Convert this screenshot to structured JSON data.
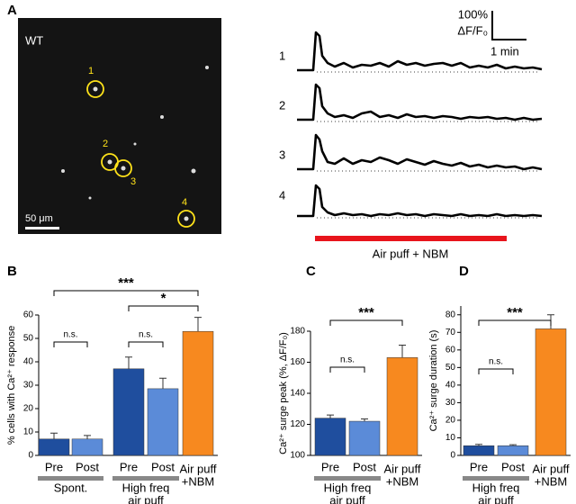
{
  "panel_a": {
    "label": "A",
    "image_label": "WT",
    "cell_labels": [
      "1",
      "2",
      "3",
      "4"
    ],
    "scale_bar": "50 μm",
    "trace_labels": [
      "1",
      "2",
      "3",
      "4"
    ],
    "scale_y": "100%",
    "scale_y_unit": "ΔF/F₀",
    "scale_x": "1 min",
    "stimulus": "Air puff + NBM"
  },
  "chart_data": [
    {
      "type": "bar",
      "panel": "B",
      "y_label": "% cells with Ca²⁺ response",
      "groups": [
        {
          "label": [
            "Spont."
          ],
          "categories": [
            "Pre",
            "Post"
          ]
        },
        {
          "label": [
            "High freq",
            "air puff"
          ],
          "categories": [
            "Pre",
            "Post"
          ]
        },
        {
          "label": [
            "Air puff",
            "+NBM"
          ],
          "categories": [
            null
          ]
        }
      ],
      "values": [
        7,
        7,
        37,
        28.5,
        53
      ],
      "errors": [
        2.5,
        1.5,
        5,
        4.5,
        6
      ],
      "colors": [
        "#1f4e9e",
        "#5b8bd8",
        "#1f4e9e",
        "#5b8bd8",
        "#f7891f"
      ],
      "ylim": [
        0,
        60
      ],
      "yticks": [
        0,
        10,
        20,
        30,
        40,
        50,
        60
      ],
      "annotations": [
        "***",
        "*",
        "n.s.",
        "n.s."
      ]
    },
    {
      "type": "bar",
      "panel": "C",
      "y_label": "Ca²⁺ surge peak (%, ΔF/F₀)",
      "groups": [
        {
          "label": [
            "High freq",
            "air puff"
          ],
          "categories": [
            "Pre",
            "Post"
          ]
        },
        {
          "label": [
            "Air puff",
            "+NBM"
          ],
          "categories": [
            null
          ]
        }
      ],
      "values": [
        124,
        122,
        163
      ],
      "errors": [
        2,
        1.5,
        8
      ],
      "colors": [
        "#1f4e9e",
        "#5b8bd8",
        "#f7891f"
      ],
      "ylim": [
        100,
        180
      ],
      "yticks": [
        100,
        120,
        140,
        160,
        180
      ],
      "annotations": [
        "***",
        "n.s."
      ]
    },
    {
      "type": "bar",
      "panel": "D",
      "y_label": "Ca²⁺ surge duration (s)",
      "groups": [
        {
          "label": [
            "High freq",
            "air puff"
          ],
          "categories": [
            "Pre",
            "Post"
          ]
        },
        {
          "label": [
            "Air puff",
            "+NBM"
          ],
          "categories": [
            null
          ]
        }
      ],
      "values": [
        5.5,
        5.5,
        72
      ],
      "errors": [
        0.8,
        0.6,
        8
      ],
      "colors": [
        "#1f4e9e",
        "#5b8bd8",
        "#f7891f"
      ],
      "ylim": [
        0,
        85
      ],
      "yticks": [
        0,
        10,
        20,
        30,
        40,
        50,
        60,
        70,
        80
      ],
      "annotations": [
        "***",
        "n.s."
      ]
    }
  ]
}
